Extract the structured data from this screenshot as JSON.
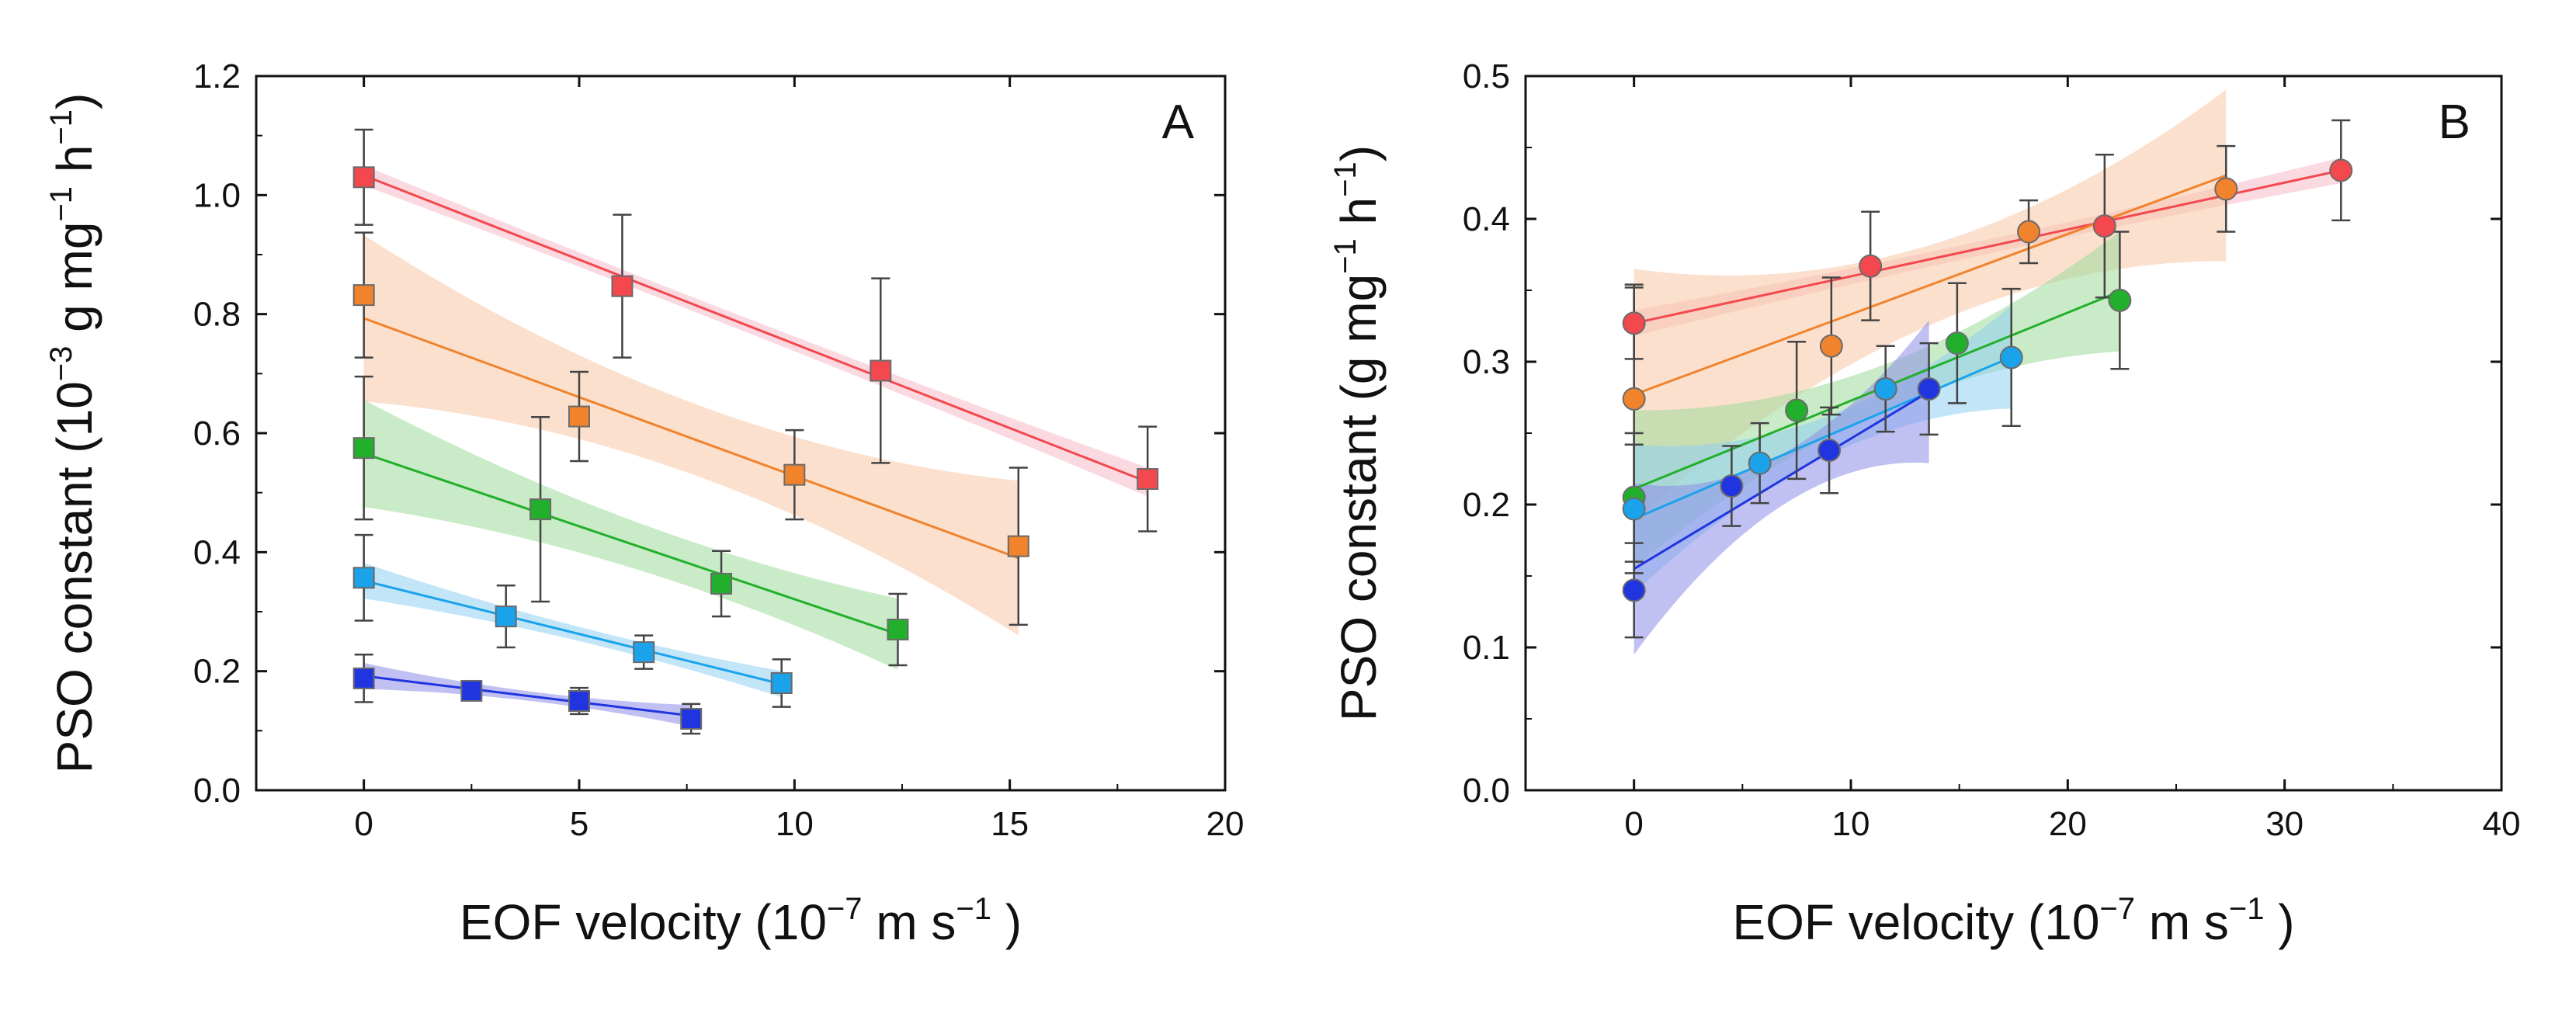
{
  "figure": {
    "panels": [
      "A",
      "B"
    ]
  },
  "chart_data": [
    {
      "type": "scatter",
      "panel_label": "A",
      "xlabel": "EOF velocity (10⁻⁷ m s⁻¹)",
      "ylabel": "PSO constant (10⁻³ g mg⁻¹ h⁻¹)",
      "xlabel_parts": [
        "EOF velocity (10",
        "−7",
        " m s",
        "−1",
        " )"
      ],
      "ylabel_parts": [
        "PSO constant (10",
        "−3",
        " g mg",
        "−1",
        " h",
        "−1",
        ")"
      ],
      "xlim": [
        -2.5,
        20
      ],
      "ylim": [
        0,
        1.2
      ],
      "xticks": [
        0,
        5,
        10,
        15,
        20
      ],
      "xtick_labels": [
        "0",
        "5",
        "10",
        "15",
        "20"
      ],
      "yticks": [
        0,
        0.2,
        0.4,
        0.6,
        0.8,
        1.0,
        1.2
      ],
      "ytick_labels": [
        "0.0",
        "0.2",
        "0.4",
        "0.6",
        "0.8",
        "1.0",
        "1.2"
      ],
      "marker": "square",
      "series": [
        {
          "name": "red",
          "color": "#f2484e",
          "band_color": "#f7b9c8",
          "x": [
            0,
            6.0,
            12.0,
            18.2
          ],
          "y": [
            1.03,
            0.847,
            0.705,
            0.523
          ],
          "err": [
            0.08,
            0.12,
            0.155,
            0.088
          ],
          "fit": [
            1.033,
            -0.0283
          ],
          "band_halfwidth": [
            0.017,
            0.012,
            0.024
          ]
        },
        {
          "name": "orange",
          "color": "#f0832c",
          "band_color": "#f7c7a6",
          "x": [
            0,
            5.0,
            10.0,
            15.2
          ],
          "y": [
            0.832,
            0.628,
            0.53,
            0.41
          ],
          "err": [
            0.105,
            0.075,
            0.075,
            0.132
          ],
          "fit": [
            0.793,
            -0.0265
          ],
          "band_halfwidth": [
            0.14,
            0.06,
            0.13
          ]
        },
        {
          "name": "green",
          "color": "#22b02c",
          "band_color": "#9edb9b",
          "x": [
            0,
            4.1,
            8.3,
            12.4
          ],
          "y": [
            0.575,
            0.472,
            0.347,
            0.27
          ],
          "err": [
            0.12,
            0.155,
            0.055,
            0.06
          ],
          "fit": [
            0.566,
            -0.0245
          ],
          "band_halfwidth": [
            0.09,
            0.04,
            0.06
          ]
        },
        {
          "name": "light-blue",
          "color": "#1aa3ea",
          "band_color": "#8fd0f2",
          "x": [
            0,
            3.3,
            6.5,
            9.7
          ],
          "y": [
            0.357,
            0.292,
            0.232,
            0.18
          ],
          "err": [
            0.072,
            0.052,
            0.028,
            0.04
          ],
          "fit": [
            0.352,
            -0.0179
          ],
          "band_halfwidth": [
            0.03,
            0.012,
            0.022
          ]
        },
        {
          "name": "blue",
          "color": "#2035e0",
          "band_color": "#8c8ee8",
          "x": [
            0,
            2.5,
            5.0,
            7.6
          ],
          "y": [
            0.188,
            0.167,
            0.15,
            0.12
          ],
          "err": [
            0.04,
            0.013,
            0.022,
            0.025
          ],
          "fit": [
            0.192,
            -0.0088
          ],
          "band_halfwidth": [
            0.022,
            0.008,
            0.018
          ]
        }
      ]
    },
    {
      "type": "scatter",
      "panel_label": "B",
      "xlabel": "EOF velocity (10⁻⁷ m s⁻¹)",
      "ylabel": "PSO constant (g mg⁻¹ h⁻¹)",
      "xlabel_parts": [
        "EOF velocity (10",
        "−7",
        " m s",
        "−1",
        " )"
      ],
      "ylabel_parts": [
        "PSO constant (g mg",
        "−1",
        " h",
        "−1",
        ")"
      ],
      "xlim": [
        -5,
        40
      ],
      "ylim": [
        0,
        0.5
      ],
      "xticks": [
        0,
        10,
        20,
        30,
        40
      ],
      "xtick_labels": [
        "0",
        "10",
        "20",
        "30",
        "40"
      ],
      "yticks": [
        0,
        0.1,
        0.2,
        0.3,
        0.4,
        0.5
      ],
      "ytick_labels": [
        "0.0",
        "0.1",
        "0.2",
        "0.3",
        "0.4",
        "0.5"
      ],
      "marker": "circle",
      "series": [
        {
          "name": "red",
          "color": "#f2484e",
          "band_color": "#f7b9c8",
          "x": [
            0,
            10.9,
            21.7,
            32.6
          ],
          "y": [
            0.327,
            0.367,
            0.395,
            0.434
          ],
          "err": [
            0.025,
            0.038,
            0.05,
            0.035
          ],
          "fit": [
            0.327,
            0.00328
          ],
          "band_halfwidth": [
            0.009,
            0.005,
            0.009
          ]
        },
        {
          "name": "orange",
          "color": "#f0832c",
          "band_color": "#f7c7a6",
          "x": [
            0,
            9.1,
            18.2,
            27.3
          ],
          "y": [
            0.274,
            0.311,
            0.391,
            0.421
          ],
          "err": [
            0.08,
            0.048,
            0.022,
            0.03
          ],
          "fit": [
            0.277,
            0.00562
          ],
          "band_halfwidth": [
            0.088,
            0.028,
            0.06
          ]
        },
        {
          "name": "green",
          "color": "#22b02c",
          "band_color": "#9edb9b",
          "x": [
            0,
            7.5,
            14.9,
            22.4
          ],
          "y": [
            0.205,
            0.266,
            0.313,
            0.343
          ],
          "err": [
            0.045,
            0.048,
            0.042,
            0.048
          ],
          "fit": [
            0.211,
            0.00617
          ],
          "band_halfwidth": [
            0.055,
            0.016,
            0.042
          ]
        },
        {
          "name": "light-blue",
          "color": "#1aa3ea",
          "band_color": "#8fd0f2",
          "x": [
            0,
            5.8,
            11.6,
            17.4
          ],
          "y": [
            0.197,
            0.229,
            0.281,
            0.303
          ],
          "err": [
            0.045,
            0.028,
            0.03,
            0.048
          ],
          "fit": [
            0.19,
            0.00651
          ],
          "band_halfwidth": [
            0.052,
            0.014,
            0.036
          ]
        },
        {
          "name": "blue",
          "color": "#2035e0",
          "band_color": "#8c8ee8",
          "x": [
            0,
            4.5,
            9.0,
            13.6
          ],
          "y": [
            0.14,
            0.213,
            0.238,
            0.281
          ],
          "err": [
            0.033,
            0.028,
            0.03,
            0.032
          ],
          "fit": [
            0.155,
            0.00912
          ],
          "band_halfwidth": [
            0.06,
            0.018,
            0.05
          ]
        }
      ]
    }
  ]
}
